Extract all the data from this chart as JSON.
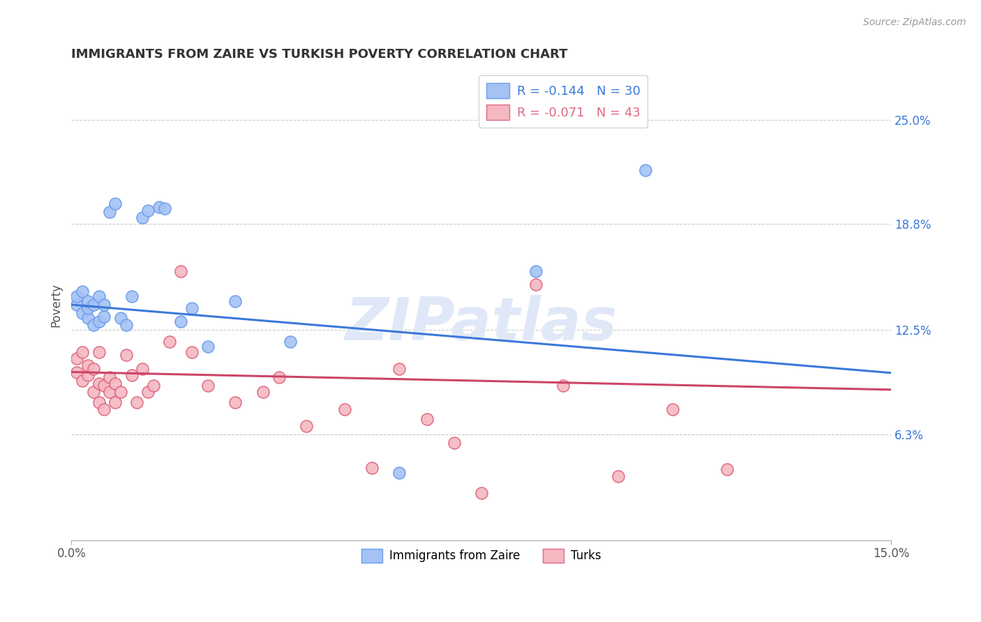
{
  "title": "IMMIGRANTS FROM ZAIRE VS TURKISH POVERTY CORRELATION CHART",
  "source_text": "Source: ZipAtlas.com",
  "watermark": "ZIPatlas",
  "ylabel": "Poverty",
  "xlim": [
    0.0,
    0.15
  ],
  "ylim": [
    0.0,
    0.28
  ],
  "xtick_labels": [
    "0.0%",
    "15.0%"
  ],
  "xtick_vals": [
    0.0,
    0.15
  ],
  "ytick_labels": [
    "6.3%",
    "12.5%",
    "18.8%",
    "25.0%"
  ],
  "ytick_vals": [
    0.063,
    0.125,
    0.188,
    0.25
  ],
  "blue_fill": "#a4c2f4",
  "blue_edge": "#6d9eeb",
  "pink_fill": "#f4b8c1",
  "pink_edge": "#e06880",
  "blue_line_color": "#3c78d8",
  "pink_line_color": "#cc4466",
  "legend_blue_label": "R = -0.144   N = 30",
  "legend_pink_label": "R = -0.071   N = 43",
  "legend_blue_series": "Immigrants from Zaire",
  "legend_pink_series": "Turks",
  "blue_intercept": 0.14,
  "blue_slope": -0.27,
  "pink_intercept": 0.1,
  "pink_slope": -0.07,
  "blue_points_x": [
    0.001,
    0.001,
    0.002,
    0.002,
    0.003,
    0.003,
    0.003,
    0.004,
    0.004,
    0.005,
    0.005,
    0.006,
    0.006,
    0.007,
    0.008,
    0.009,
    0.01,
    0.011,
    0.013,
    0.014,
    0.016,
    0.017,
    0.02,
    0.022,
    0.025,
    0.03,
    0.04,
    0.06,
    0.085,
    0.105
  ],
  "blue_points_y": [
    0.14,
    0.145,
    0.135,
    0.148,
    0.132,
    0.138,
    0.142,
    0.128,
    0.14,
    0.13,
    0.145,
    0.133,
    0.14,
    0.195,
    0.2,
    0.132,
    0.128,
    0.145,
    0.192,
    0.196,
    0.198,
    0.197,
    0.13,
    0.138,
    0.115,
    0.142,
    0.118,
    0.04,
    0.16,
    0.22
  ],
  "pink_points_x": [
    0.001,
    0.001,
    0.002,
    0.002,
    0.003,
    0.003,
    0.004,
    0.004,
    0.005,
    0.005,
    0.005,
    0.006,
    0.006,
    0.007,
    0.007,
    0.008,
    0.008,
    0.009,
    0.01,
    0.011,
    0.012,
    0.013,
    0.014,
    0.015,
    0.018,
    0.02,
    0.022,
    0.025,
    0.03,
    0.035,
    0.038,
    0.043,
    0.05,
    0.055,
    0.06,
    0.065,
    0.07,
    0.075,
    0.085,
    0.09,
    0.1,
    0.11,
    0.12
  ],
  "pink_points_y": [
    0.1,
    0.108,
    0.095,
    0.112,
    0.098,
    0.104,
    0.088,
    0.102,
    0.082,
    0.093,
    0.112,
    0.078,
    0.092,
    0.088,
    0.097,
    0.082,
    0.093,
    0.088,
    0.11,
    0.098,
    0.082,
    0.102,
    0.088,
    0.092,
    0.118,
    0.16,
    0.112,
    0.092,
    0.082,
    0.088,
    0.097,
    0.068,
    0.078,
    0.043,
    0.102,
    0.072,
    0.058,
    0.028,
    0.152,
    0.092,
    0.038,
    0.078,
    0.042
  ]
}
